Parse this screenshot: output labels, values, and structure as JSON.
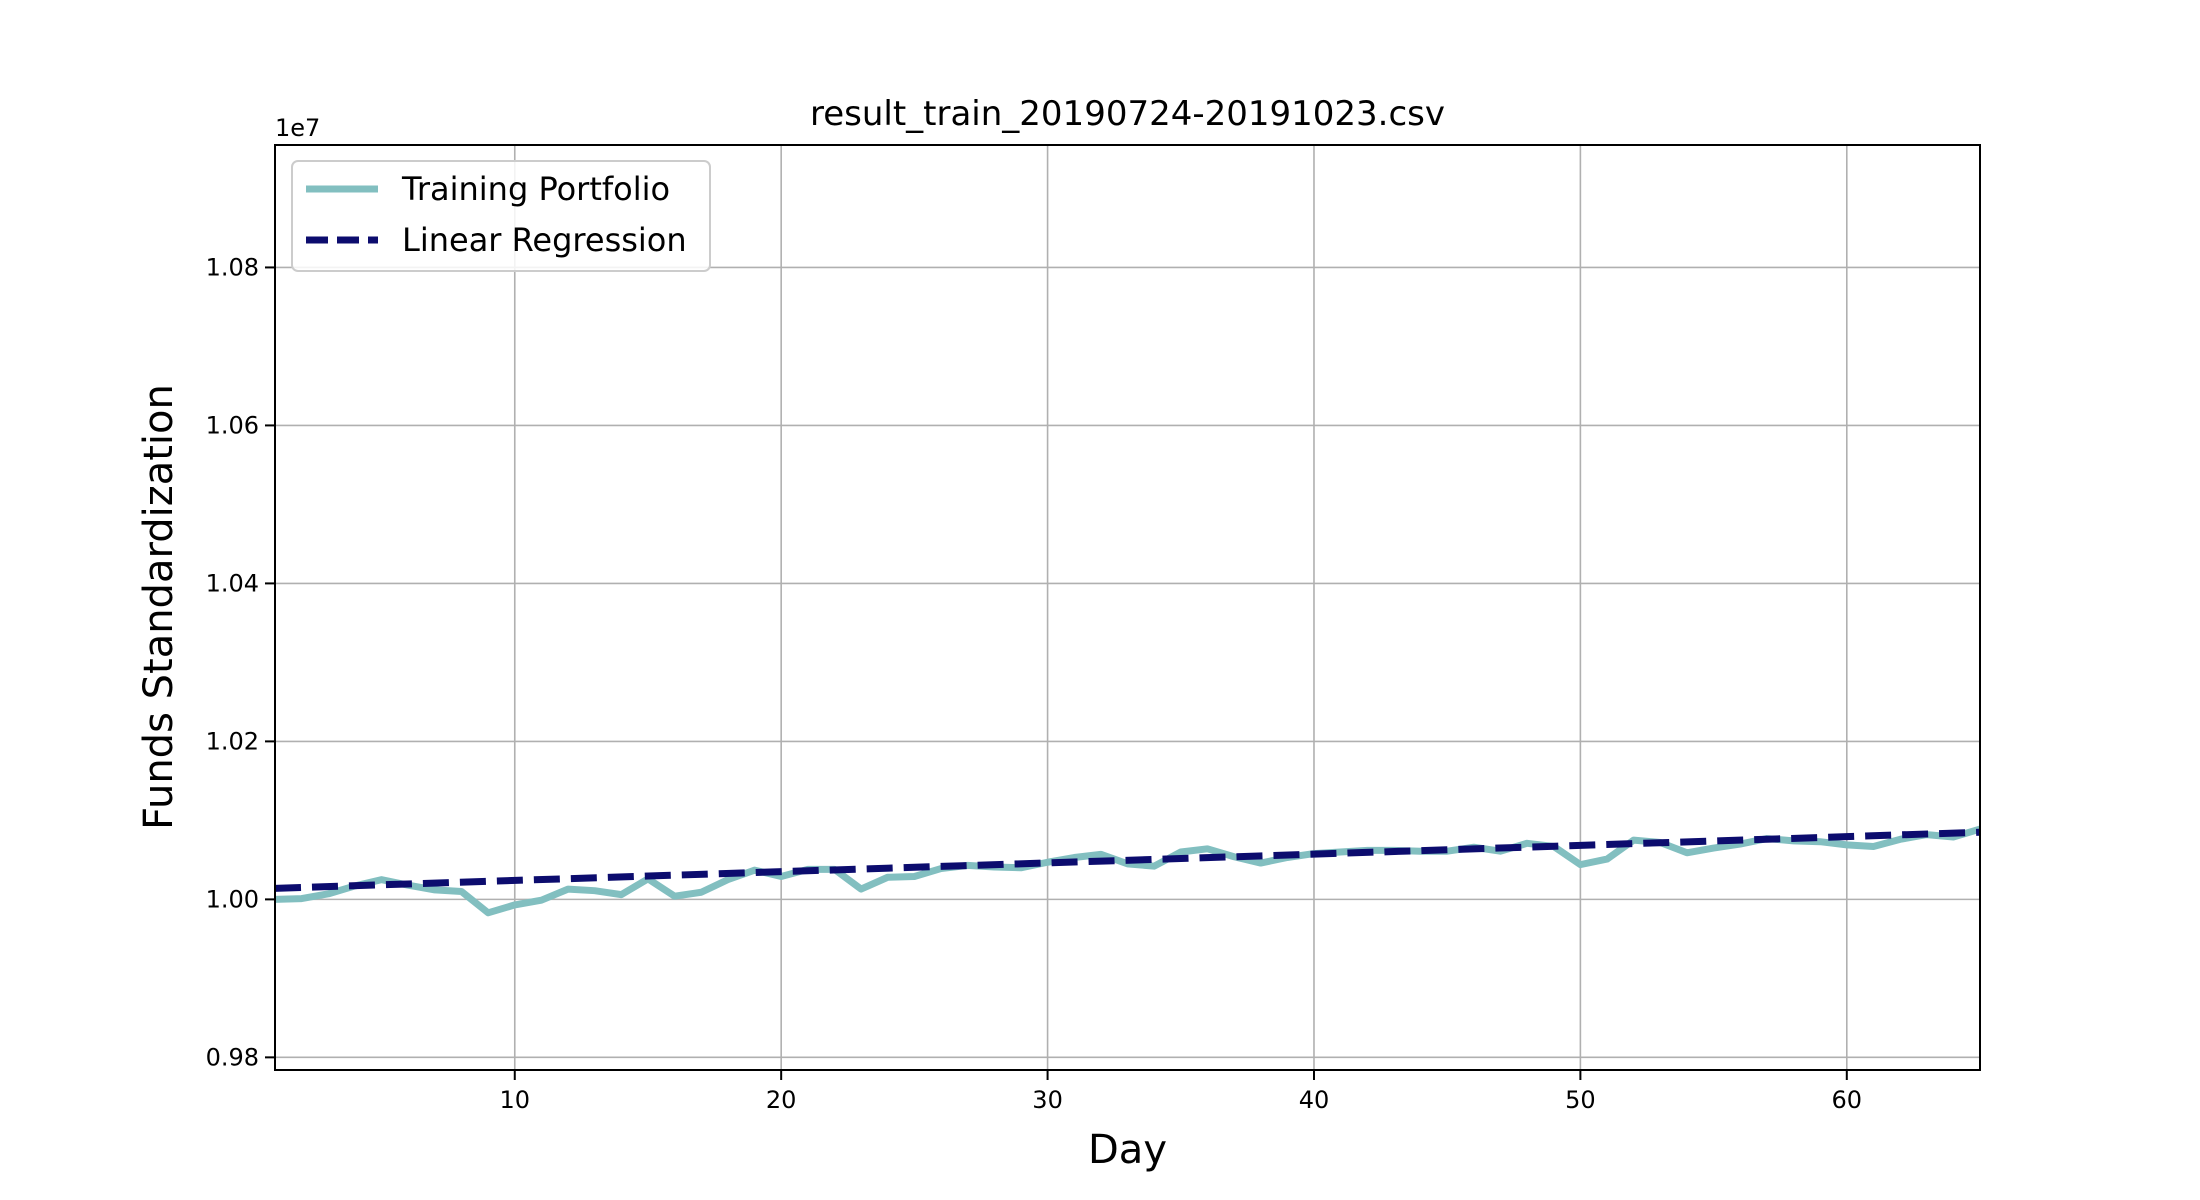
{
  "chart_data": {
    "type": "line",
    "title": "result_train_20190724-20191023.csv",
    "xlabel": "Day",
    "ylabel": "Funds Standardization",
    "y_offset_text": "1e7",
    "xlim": [
      1,
      65
    ],
    "ylim": [
      0.9784,
      1.0955
    ],
    "x_ticks": [
      10,
      20,
      30,
      40,
      50,
      60
    ],
    "y_ticks": [
      0.98,
      1.0,
      1.02,
      1.04,
      1.06,
      1.08
    ],
    "y_tick_labels": [
      "0.98",
      "1.00",
      "1.02",
      "1.04",
      "1.06",
      "1.08"
    ],
    "grid": true,
    "legend_position": "top-left",
    "series": [
      {
        "name": "Training Portfolio",
        "style": "solid",
        "color": "#82bfc0",
        "x": [
          1,
          2,
          3,
          4,
          5,
          6,
          7,
          8,
          9,
          10,
          11,
          12,
          13,
          14,
          15,
          16,
          17,
          18,
          19,
          20,
          21,
          22,
          23,
          24,
          25,
          26,
          27,
          28,
          29,
          30,
          31,
          32,
          33,
          34,
          35,
          36,
          37,
          38,
          39,
          40,
          41,
          42,
          43,
          44,
          45,
          46,
          47,
          48,
          49,
          50,
          51,
          52,
          53,
          54,
          55,
          56,
          57,
          58,
          59,
          60,
          61,
          62,
          63,
          64,
          65
        ],
        "y": [
          1.0,
          1.0001,
          1.0007,
          1.0017,
          1.0025,
          1.0018,
          1.0012,
          1.001,
          0.9983,
          0.9993,
          0.9999,
          1.0013,
          1.0011,
          1.0006,
          1.0026,
          1.0004,
          1.0009,
          1.0025,
          1.0037,
          1.0029,
          1.0038,
          1.0038,
          1.0013,
          1.0028,
          1.0029,
          1.0039,
          1.0043,
          1.0041,
          1.004,
          1.0047,
          1.0053,
          1.0057,
          1.0045,
          1.0042,
          1.006,
          1.0064,
          1.0054,
          1.0046,
          1.0053,
          1.0058,
          1.006,
          1.0062,
          1.0062,
          1.0061,
          1.0061,
          1.0066,
          1.0061,
          1.0071,
          1.0067,
          1.0044,
          1.0051,
          1.0075,
          1.0072,
          1.0059,
          1.0065,
          1.007,
          1.0077,
          1.0074,
          1.0073,
          1.0069,
          1.0067,
          1.0076,
          1.0082,
          1.0079,
          1.0089
        ]
      },
      {
        "name": "Linear Regression",
        "style": "dashed",
        "color": "#0c0c6e",
        "x": [
          1,
          65
        ],
        "y": [
          1.0014,
          1.0085
        ]
      }
    ]
  }
}
